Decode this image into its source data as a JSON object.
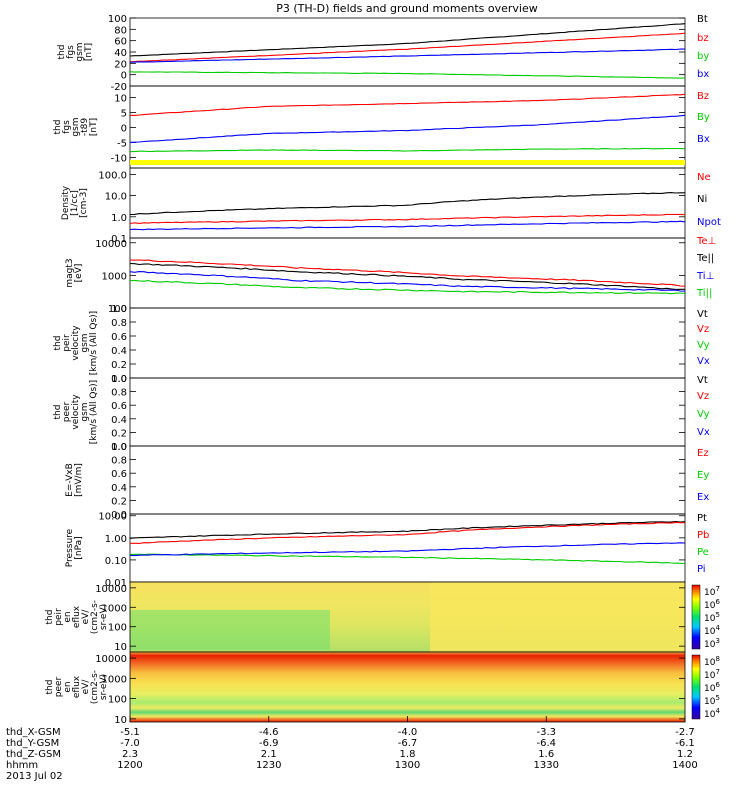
{
  "title": "P3 (TH-D) fields and ground moments overview",
  "chart_data": [
    {
      "type": "line",
      "ylabel": [
        "thd",
        "fgs",
        "gsm",
        "[nT]"
      ],
      "ylim": [
        -20,
        100
      ],
      "ticks": [
        "100",
        "80",
        "60",
        "40",
        "20",
        "0",
        "-20"
      ],
      "tick_values": [
        100,
        80,
        60,
        40,
        20,
        0,
        -20
      ],
      "x": [
        0,
        0.5,
        1
      ],
      "series": [
        {
          "name": "Bt",
          "color": "#000000",
          "values": [
            33,
            55,
            90
          ]
        },
        {
          "name": "bz",
          "color": "#ff0000",
          "values": [
            23,
            45,
            73
          ]
        },
        {
          "name": "by",
          "color": "#00cc00",
          "values": [
            5,
            2,
            -6
          ]
        },
        {
          "name": "bx",
          "color": "#0000ff",
          "values": [
            22,
            33,
            45
          ]
        }
      ]
    },
    {
      "type": "line",
      "ylabel": [
        "thd",
        "fgs",
        "gsm",
        "-t89",
        "[nT]"
      ],
      "ylim": [
        -13.5,
        13.8
      ],
      "ticks": [
        "10",
        "5",
        "0",
        "-5",
        "-10"
      ],
      "tick_values": [
        10,
        5,
        0,
        -5,
        -10
      ],
      "x": [
        0,
        0.25,
        0.5,
        0.75,
        1
      ],
      "series": [
        {
          "name": "Bz",
          "color": "#ff0000",
          "values": [
            4,
            7,
            8,
            9,
            11
          ]
        },
        {
          "name": "By",
          "color": "#00cc00",
          "values": [
            -8,
            -7.5,
            -7.8,
            -7.2,
            -7
          ]
        },
        {
          "name": "Bx",
          "color": "#0000ff",
          "values": [
            -5,
            -2,
            -1,
            1,
            4
          ]
        }
      ],
      "flag_color": "#ffff00"
    },
    {
      "type": "line",
      "ylabel": [
        "Density",
        "[1/cc]",
        "[cm-3]"
      ],
      "ylim": [
        0.1,
        200
      ],
      "log": true,
      "ticks": [
        "100.0",
        "10.0",
        "1.0",
        "0.1"
      ],
      "tick_values": [
        100,
        10,
        1,
        0.1
      ],
      "x": [
        0,
        0.5,
        1
      ],
      "series": [
        {
          "name": "Ne",
          "color": "#ff0000",
          "values": [
            0.5,
            0.75,
            1.3
          ]
        },
        {
          "name": "Ni",
          "color": "#000000",
          "values": [
            1.3,
            3.5,
            14
          ]
        },
        {
          "name": "Npot",
          "color": "#0000ff",
          "values": [
            0.25,
            0.35,
            0.6
          ]
        }
      ]
    },
    {
      "type": "line",
      "ylabel": [
        "magt3",
        "[eV]"
      ],
      "ylim": [
        100,
        14000
      ],
      "log": true,
      "ticks": [
        "10000",
        "1000",
        "100"
      ],
      "tick_values": [
        10000,
        1000,
        100
      ],
      "x": [
        0,
        0.3,
        0.6,
        1
      ],
      "series": [
        {
          "name": "Te⊥",
          "color": "#ff0000",
          "values": [
            3000,
            1700,
            950,
            480
          ]
        },
        {
          "name": "Te||",
          "color": "#000000",
          "values": [
            2300,
            1300,
            750,
            360
          ]
        },
        {
          "name": "Ti⊥",
          "color": "#0000ff",
          "values": [
            1300,
            700,
            460,
            340
          ]
        },
        {
          "name": "Ti||",
          "color": "#00cc00",
          "values": [
            700,
            420,
            320,
            280
          ]
        }
      ]
    },
    {
      "type": "line",
      "ylabel": [
        "thd",
        "peir",
        "velocity",
        "gsm",
        "[km/s (All Qs)]"
      ],
      "ylim": [
        0,
        1
      ],
      "ticks": [
        "1.0",
        "0.8",
        "0.6",
        "0.4",
        "0.2",
        "0.0"
      ],
      "tick_values": [
        1,
        0.8,
        0.6,
        0.4,
        0.2,
        0
      ],
      "series": [
        {
          "name": "Vt",
          "color": "#000000",
          "values": []
        },
        {
          "name": "Vz",
          "color": "#ff0000",
          "values": []
        },
        {
          "name": "Vy",
          "color": "#00cc00",
          "values": []
        },
        {
          "name": "Vx",
          "color": "#0000ff",
          "values": []
        }
      ]
    },
    {
      "type": "line",
      "ylabel": [
        "thd",
        "peer",
        "velocity",
        "gsm",
        "[km/s (All Qs)]"
      ],
      "ylim": [
        0,
        1
      ],
      "ticks": [
        "1.0",
        "0.8",
        "0.6",
        "0.4",
        "0.2",
        "0.0"
      ],
      "tick_values": [
        1,
        0.8,
        0.6,
        0.4,
        0.2,
        0
      ],
      "series": [
        {
          "name": "Vt",
          "color": "#000000",
          "values": []
        },
        {
          "name": "Vz",
          "color": "#ff0000",
          "values": []
        },
        {
          "name": "Vy",
          "color": "#00cc00",
          "values": []
        },
        {
          "name": "Vx",
          "color": "#0000ff",
          "values": []
        }
      ]
    },
    {
      "type": "line",
      "ylabel": [
        "E=-VxB",
        "[mV/m]"
      ],
      "ylim": [
        0,
        1
      ],
      "ticks": [
        "1.0",
        "0.8",
        "0.6",
        "0.4",
        "0.2",
        "0.0"
      ],
      "tick_values": [
        1,
        0.8,
        0.6,
        0.4,
        0.2,
        0
      ],
      "series": [
        {
          "name": "Ez",
          "color": "#ff0000",
          "values": []
        },
        {
          "name": "Ey",
          "color": "#00cc00",
          "values": []
        },
        {
          "name": "Ex",
          "color": "#0000ff",
          "values": []
        }
      ]
    },
    {
      "type": "line",
      "ylabel": [
        "Pressure",
        "[nPa]"
      ],
      "ylim": [
        0.01,
        12
      ],
      "log": true,
      "ticks": [
        "10.00",
        "1.00",
        "0.10",
        "0.01"
      ],
      "tick_values": [
        10,
        1,
        0.1,
        0.01
      ],
      "x": [
        0,
        0.5,
        1
      ],
      "series": [
        {
          "name": "Pt",
          "color": "#000000",
          "values": [
            0.95,
            2.0,
            5.5
          ]
        },
        {
          "name": "Pb",
          "color": "#ff0000",
          "values": [
            0.55,
            1.4,
            5.0
          ]
        },
        {
          "name": "Pe",
          "color": "#00cc00",
          "values": [
            0.18,
            0.13,
            0.07
          ]
        },
        {
          "name": "Pi",
          "color": "#0000ff",
          "values": [
            0.16,
            0.25,
            0.6
          ]
        }
      ]
    },
    {
      "type": "heatmap",
      "ylabel": [
        "thd",
        "peir",
        "en",
        "eflux",
        "eV/",
        "(cm2-s-",
        "sr-eV)"
      ],
      "ylim": [
        5,
        20000
      ],
      "log": true,
      "ticks": [
        "10000",
        "1000",
        "100",
        "10"
      ],
      "tick_values": [
        10000,
        1000,
        100,
        10
      ],
      "colorbar_ticks": [
        "10^7",
        "10^6",
        "10^5",
        "10^4",
        "10^3"
      ]
    },
    {
      "type": "heatmap",
      "ylabel": [
        "thd",
        "peer",
        "en",
        "eflux",
        "eV/",
        "(cm2-s-",
        "sr-eV)"
      ],
      "ylim": [
        7,
        20000
      ],
      "log": true,
      "ticks": [
        "10000",
        "1000",
        "100",
        "10"
      ],
      "tick_values": [
        10000,
        1000,
        100,
        10
      ],
      "colorbar_ticks": [
        "10^8",
        "10^7",
        "10^6",
        "10^5",
        "10^4"
      ]
    }
  ],
  "x_axis": {
    "rows": [
      {
        "label": "thd_X-GSM",
        "values": [
          "-5.1",
          "-4.6",
          "-4.0",
          "-3.3",
          "-2.7"
        ]
      },
      {
        "label": "thd_Y-GSM",
        "values": [
          "-7.0",
          "-6.9",
          "-6.7",
          "-6.4",
          "-6.1"
        ]
      },
      {
        "label": "thd_Z-GSM",
        "values": [
          "2.3",
          "2.1",
          "1.8",
          "1.6",
          "1.2"
        ]
      },
      {
        "label": "hhmm",
        "values": [
          "1200",
          "1230",
          "1300",
          "1330",
          "1400"
        ]
      }
    ],
    "date": "2013 Jul 02"
  }
}
